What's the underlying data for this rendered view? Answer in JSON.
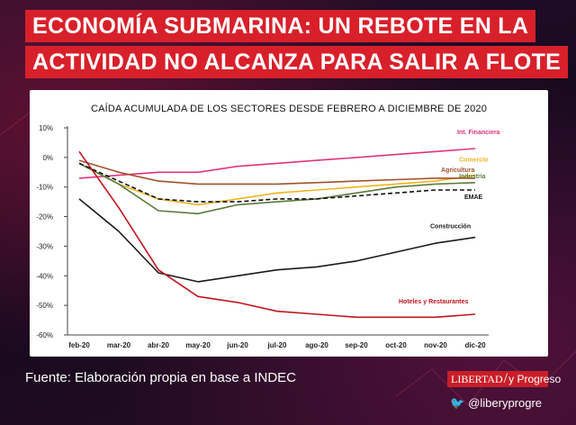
{
  "headline": {
    "line1": "ECONOMÍA SUBMARINA: UN REBOTE EN LA",
    "line2": "ACTIVIDAD NO ALCANZA PARA SALIR A FLOTE"
  },
  "chart_data": {
    "type": "line",
    "title": "CAÍDA ACUMULADA DE LOS SECTORES DESDE FEBRERO A DICIEMBRE DE 2020",
    "categories": [
      "feb-20",
      "mar-20",
      "abr-20",
      "may-20",
      "jun-20",
      "jul-20",
      "ago-20",
      "sep-20",
      "oct-20",
      "nov-20",
      "dic-20"
    ],
    "yticks": [
      "10%",
      "0%",
      "-10%",
      "-20%",
      "-30%",
      "-40%",
      "-50%",
      "-60%"
    ],
    "ylim": [
      -60,
      10
    ],
    "series": [
      {
        "name": "Int. Financiera",
        "color": "#e0357a",
        "dashed": false,
        "values": [
          -7,
          -6,
          -5,
          -5,
          -3,
          -2,
          -1,
          0,
          1,
          2,
          3
        ]
      },
      {
        "name": "Comercio",
        "color": "#f0b41e",
        "dashed": false,
        "values": [
          -2,
          -9,
          -14,
          -16,
          -14,
          -12,
          -11,
          -10,
          -9,
          -8,
          -6
        ]
      },
      {
        "name": "Agricultura",
        "color": "#a0522d",
        "dashed": false,
        "values": [
          -1,
          -5,
          -8,
          -9,
          -9,
          -9,
          -8.5,
          -8,
          -7.5,
          -7,
          -7
        ]
      },
      {
        "name": "Industria",
        "color": "#5a7a3a",
        "dashed": false,
        "values": [
          -2,
          -9,
          -18,
          -19,
          -16,
          -15,
          -14,
          -12,
          -10,
          -9,
          -8.5
        ]
      },
      {
        "name": "EMAE",
        "color": "#111111",
        "dashed": true,
        "values": [
          -2,
          -8,
          -14,
          -15,
          -15,
          -14,
          -14,
          -13,
          -12,
          -11,
          -11
        ]
      },
      {
        "name": "Construcción",
        "color": "#1a1a1a",
        "dashed": false,
        "values": [
          -14,
          -25,
          -39,
          -42,
          -40,
          -38,
          -37,
          -35,
          -32,
          -29,
          -27
        ]
      },
      {
        "name": "Hoteles y Restaurantes",
        "color": "#c0141e",
        "dashed": false,
        "values": [
          2,
          -17,
          -38,
          -47,
          -49,
          -52,
          -53,
          -54,
          -54,
          -54,
          -53
        ]
      }
    ],
    "legend_labels": {
      "Int. Financiera": "Int. Financiera",
      "Comercio": "Comercio",
      "Agricultura": "Agricultura",
      "Industria": "Industria",
      "EMAE": "EMAE",
      "Construcción": "Construcción",
      "Hoteles y Restaurantes": "Hoteles y Restaurantes"
    }
  },
  "footer": {
    "source": "Fuente: Elaboración propia en base a INDEC",
    "logo_libertad": "LIBERTAD",
    "logo_progreso": "y Progreso",
    "handle": "@liberyprogre"
  },
  "colors": {
    "accent": "#d8202a",
    "panel": "#ffffff"
  }
}
